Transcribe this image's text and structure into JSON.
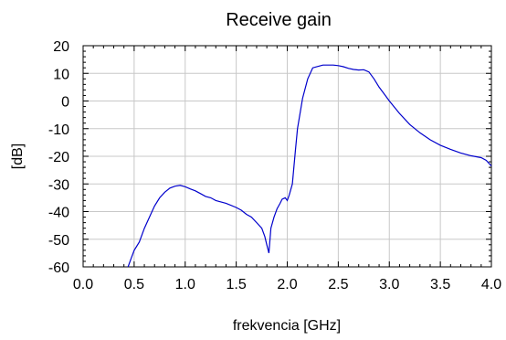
{
  "chart_data": {
    "type": "line",
    "title": "Receive gain",
    "xlabel": "frekvencia [GHz]",
    "ylabel": "[dB]",
    "xlim": [
      0.0,
      4.0
    ],
    "ylim": [
      -60,
      20
    ],
    "xticks": [
      "0.0",
      "0.5",
      "1.0",
      "1.5",
      "2.0",
      "2.5",
      "3.0",
      "3.5",
      "4.0"
    ],
    "yticks": [
      "20",
      "10",
      "0",
      "-10",
      "-20",
      "-30",
      "-40",
      "-50",
      "-60"
    ],
    "grid": true,
    "legend": "none",
    "series": [
      {
        "color": "#0000cc",
        "x": [
          0.44,
          0.47,
          0.5,
          0.55,
          0.6,
          0.65,
          0.7,
          0.75,
          0.8,
          0.85,
          0.9,
          0.95,
          1.0,
          1.05,
          1.1,
          1.15,
          1.2,
          1.25,
          1.3,
          1.4,
          1.5,
          1.55,
          1.6,
          1.65,
          1.7,
          1.75,
          1.78,
          1.8,
          1.82,
          1.84,
          1.87,
          1.9,
          1.93,
          1.95,
          1.98,
          2.0,
          2.02,
          2.05,
          2.08,
          2.1,
          2.15,
          2.2,
          2.25,
          2.3,
          2.35,
          2.4,
          2.45,
          2.5,
          2.55,
          2.6,
          2.65,
          2.7,
          2.75,
          2.8,
          2.85,
          2.9,
          2.95,
          3.0,
          3.1,
          3.2,
          3.3,
          3.4,
          3.5,
          3.6,
          3.7,
          3.8,
          3.9,
          3.95,
          4.0
        ],
        "y": [
          -60,
          -57,
          -54,
          -51,
          -46,
          -42,
          -38,
          -35,
          -33,
          -31.5,
          -30.8,
          -30.5,
          -31,
          -31.8,
          -32.5,
          -33.5,
          -34.5,
          -35,
          -36,
          -37,
          -38.5,
          -39.5,
          -41,
          -42,
          -44,
          -46,
          -49,
          -52,
          -55,
          -46,
          -42,
          -39,
          -37,
          -35.5,
          -35,
          -36,
          -34,
          -30,
          -18,
          -10,
          1,
          8,
          12,
          12.5,
          13,
          13,
          13,
          12.8,
          12.4,
          11.8,
          11.4,
          11.2,
          11.3,
          10.5,
          8,
          5,
          2.5,
          0,
          -4.5,
          -8.5,
          -11.5,
          -14,
          -16,
          -17.5,
          -18.8,
          -19.8,
          -20.5,
          -21.5,
          -23.5
        ]
      }
    ]
  }
}
